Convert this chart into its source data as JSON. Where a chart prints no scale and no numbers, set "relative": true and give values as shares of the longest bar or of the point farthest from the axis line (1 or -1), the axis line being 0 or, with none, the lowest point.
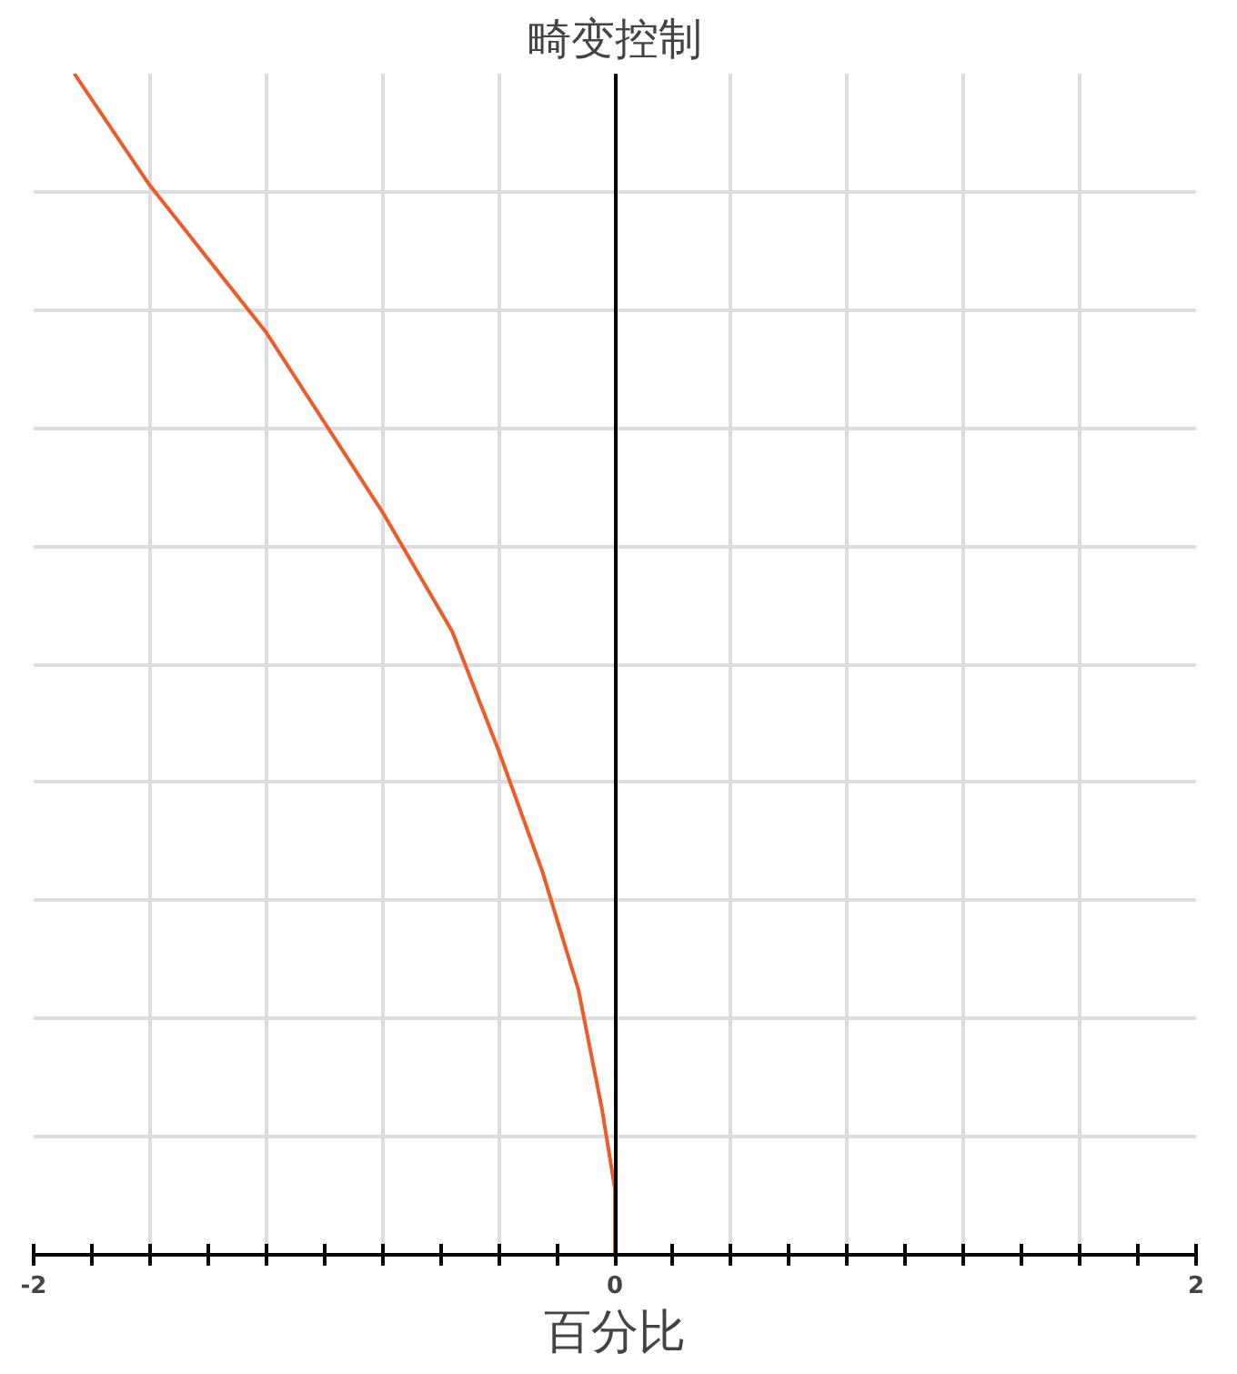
{
  "chart_data": {
    "type": "line",
    "title": "畸变控制",
    "xlabel": "百分比",
    "relative": true,
    "x": [
      -1.86,
      -1.605,
      -1.2,
      -0.8,
      -0.56,
      -0.4,
      -0.25,
      -0.125,
      -0.044,
      0,
      0
    ],
    "series": [
      {
        "color": "#f05a28",
        "values": [
          1,
          0.907,
          0.781,
          0.629,
          0.528,
          0.427,
          0.325,
          0.224,
          0.123,
          0.056,
          0
        ]
      }
    ],
    "xlim": [
      -2,
      2
    ],
    "xticks": [
      -2,
      {
        "value": -1.8,
        "label": null
      },
      {
        "value": -1.6,
        "label": null
      },
      {
        "value": -1.4,
        "label": null
      },
      {
        "value": -1.2,
        "label": null
      },
      {
        "value": -1,
        "label": null
      },
      {
        "value": -0.8,
        "label": null
      },
      {
        "value": -0.6,
        "label": null
      },
      {
        "value": -0.4,
        "label": null
      },
      {
        "value": -0.2,
        "label": null
      },
      0,
      {
        "value": 0.2,
        "label": null
      },
      {
        "value": 0.4,
        "label": null
      },
      {
        "value": 0.6,
        "label": null
      },
      {
        "value": 0.8,
        "label": null
      },
      {
        "value": 1,
        "label": null
      },
      {
        "value": 1.2,
        "label": null
      },
      {
        "value": 1.4,
        "label": null
      },
      {
        "value": 1.6,
        "label": null
      },
      {
        "value": 1.8,
        "label": null
      },
      2
    ],
    "grid": true,
    "tick_labels": "x",
    "line_style": "solid"
  }
}
